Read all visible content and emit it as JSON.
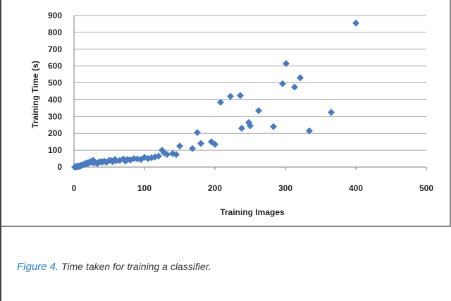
{
  "chart_data": {
    "type": "scatter",
    "xlabel": "Training Images",
    "ylabel": "Training Time (s)",
    "xlim": [
      0,
      500
    ],
    "ylim": [
      0,
      900
    ],
    "x_ticks": [
      0,
      100,
      200,
      300,
      400,
      500
    ],
    "y_ticks": [
      0,
      100,
      200,
      300,
      400,
      500,
      600,
      700,
      800,
      900
    ],
    "grid": "horizontal",
    "marker_color": "#4a7bbf",
    "points": [
      {
        "x": 1,
        "y": 0
      },
      {
        "x": 2,
        "y": 3
      },
      {
        "x": 3,
        "y": 1
      },
      {
        "x": 4,
        "y": 4
      },
      {
        "x": 5,
        "y": 2
      },
      {
        "x": 6,
        "y": 6
      },
      {
        "x": 7,
        "y": 3
      },
      {
        "x": 8,
        "y": 8
      },
      {
        "x": 9,
        "y": 5
      },
      {
        "x": 10,
        "y": 10
      },
      {
        "x": 12,
        "y": 12
      },
      {
        "x": 14,
        "y": 15
      },
      {
        "x": 15,
        "y": 20
      },
      {
        "x": 17,
        "y": 18
      },
      {
        "x": 18,
        "y": 25
      },
      {
        "x": 20,
        "y": 22
      },
      {
        "x": 22,
        "y": 30
      },
      {
        "x": 24,
        "y": 28
      },
      {
        "x": 25,
        "y": 35
      },
      {
        "x": 27,
        "y": 40
      },
      {
        "x": 28,
        "y": 25
      },
      {
        "x": 30,
        "y": 30
      },
      {
        "x": 33,
        "y": 22
      },
      {
        "x": 35,
        "y": 28
      },
      {
        "x": 38,
        "y": 32
      },
      {
        "x": 40,
        "y": 30
      },
      {
        "x": 43,
        "y": 35
      },
      {
        "x": 46,
        "y": 28
      },
      {
        "x": 50,
        "y": 40
      },
      {
        "x": 53,
        "y": 38
      },
      {
        "x": 55,
        "y": 32
      },
      {
        "x": 58,
        "y": 45
      },
      {
        "x": 60,
        "y": 38
      },
      {
        "x": 65,
        "y": 40
      },
      {
        "x": 70,
        "y": 48
      },
      {
        "x": 73,
        "y": 35
      },
      {
        "x": 76,
        "y": 45
      },
      {
        "x": 80,
        "y": 42
      },
      {
        "x": 85,
        "y": 50
      },
      {
        "x": 90,
        "y": 48
      },
      {
        "x": 95,
        "y": 45
      },
      {
        "x": 100,
        "y": 58
      },
      {
        "x": 105,
        "y": 50
      },
      {
        "x": 110,
        "y": 55
      },
      {
        "x": 115,
        "y": 60
      },
      {
        "x": 120,
        "y": 65
      },
      {
        "x": 125,
        "y": 100
      },
      {
        "x": 128,
        "y": 85
      },
      {
        "x": 132,
        "y": 75
      },
      {
        "x": 140,
        "y": 80
      },
      {
        "x": 145,
        "y": 75
      },
      {
        "x": 150,
        "y": 125
      },
      {
        "x": 168,
        "y": 110
      },
      {
        "x": 175,
        "y": 205
      },
      {
        "x": 180,
        "y": 140
      },
      {
        "x": 195,
        "y": 150
      },
      {
        "x": 200,
        "y": 135
      },
      {
        "x": 208,
        "y": 385
      },
      {
        "x": 222,
        "y": 420
      },
      {
        "x": 236,
        "y": 425
      },
      {
        "x": 238,
        "y": 230
      },
      {
        "x": 248,
        "y": 265
      },
      {
        "x": 250,
        "y": 245
      },
      {
        "x": 262,
        "y": 335
      },
      {
        "x": 283,
        "y": 240
      },
      {
        "x": 296,
        "y": 495
      },
      {
        "x": 301,
        "y": 615
      },
      {
        "x": 313,
        "y": 475
      },
      {
        "x": 321,
        "y": 530
      },
      {
        "x": 334,
        "y": 215
      },
      {
        "x": 365,
        "y": 325
      },
      {
        "x": 400,
        "y": 855
      }
    ]
  },
  "caption": {
    "figure_label": "Figure 4.",
    "text": "Time taken for training a classifier."
  }
}
